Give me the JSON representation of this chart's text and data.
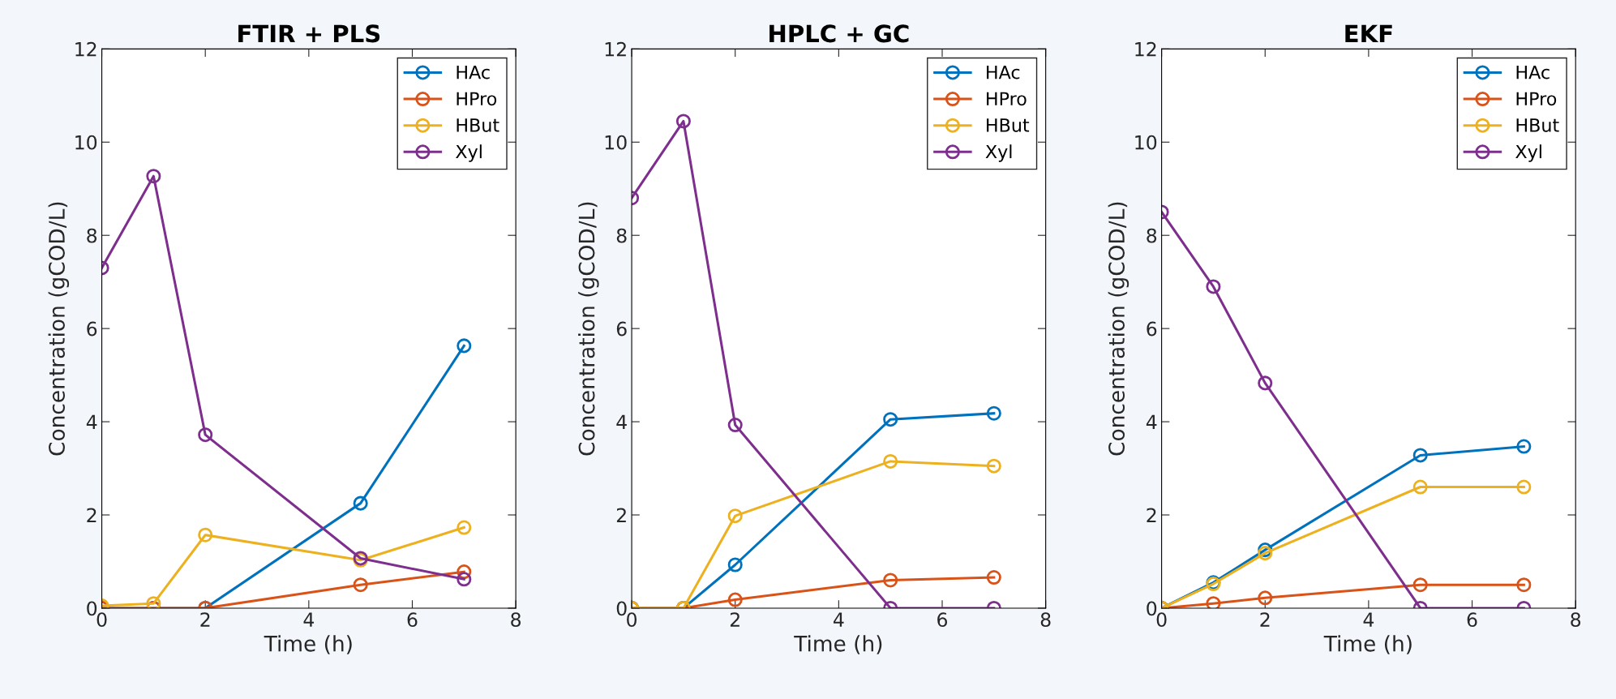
{
  "chart_data": [
    {
      "type": "line",
      "title": "FTIR + PLS",
      "xlabel": "Time (h)",
      "ylabel": "Concentration (gCOD/L)",
      "x": [
        0,
        1,
        2,
        5,
        7
      ],
      "xlim": [
        0,
        8
      ],
      "xticks": [
        0,
        2,
        4,
        6,
        8
      ],
      "ylim": [
        0,
        12
      ],
      "yticks": [
        0,
        2,
        4,
        6,
        8,
        10,
        12
      ],
      "grid": false,
      "legend": "top right",
      "marker": "circle",
      "line_style": "solid",
      "series": [
        {
          "name": "HAc",
          "color": "#0072bd",
          "values": [
            0,
            0,
            0,
            2.25,
            5.63
          ]
        },
        {
          "name": "HPro",
          "color": "#d95319",
          "values": [
            0,
            0,
            0,
            0.5,
            0.78
          ]
        },
        {
          "name": "HBut",
          "color": "#edb120",
          "values": [
            0.05,
            0.1,
            1.57,
            1.03,
            1.73
          ]
        },
        {
          "name": "Xyl",
          "color": "#7e2f8e",
          "values": [
            7.3,
            9.27,
            3.72,
            1.07,
            0.62
          ]
        }
      ]
    },
    {
      "type": "line",
      "title": "HPLC + GC",
      "xlabel": "Time (h)",
      "ylabel": "Concentration (gCOD/L)",
      "x": [
        0,
        1,
        2,
        5,
        7
      ],
      "xlim": [
        0,
        8
      ],
      "xticks": [
        0,
        2,
        4,
        6,
        8
      ],
      "ylim": [
        0,
        12
      ],
      "yticks": [
        0,
        2,
        4,
        6,
        8,
        10,
        12
      ],
      "grid": false,
      "legend": "top right",
      "marker": "circle",
      "line_style": "solid",
      "series": [
        {
          "name": "HAc",
          "color": "#0072bd",
          "values": [
            0,
            0,
            0.93,
            4.05,
            4.18
          ]
        },
        {
          "name": "HPro",
          "color": "#d95319",
          "values": [
            0,
            0,
            0.18,
            0.6,
            0.66
          ]
        },
        {
          "name": "HBut",
          "color": "#edb120",
          "values": [
            0,
            0,
            1.98,
            3.15,
            3.05
          ]
        },
        {
          "name": "Xyl",
          "color": "#7e2f8e",
          "values": [
            8.8,
            10.45,
            3.93,
            0,
            0
          ]
        }
      ]
    },
    {
      "type": "line",
      "title": "EKF",
      "xlabel": "Time (h)",
      "ylabel": "Concentration (gCOD/L)",
      "x": [
        0,
        1,
        2,
        5,
        7
      ],
      "xlim": [
        0,
        8
      ],
      "xticks": [
        0,
        2,
        4,
        6,
        8
      ],
      "ylim": [
        0,
        12
      ],
      "yticks": [
        0,
        2,
        4,
        6,
        8,
        10,
        12
      ],
      "grid": false,
      "legend": "top right",
      "marker": "circle",
      "line_style": "solid",
      "series": [
        {
          "name": "HAc",
          "color": "#0072bd",
          "values": [
            0,
            0.55,
            1.25,
            3.28,
            3.47
          ]
        },
        {
          "name": "HPro",
          "color": "#d95319",
          "values": [
            0,
            0.1,
            0.22,
            0.5,
            0.5
          ]
        },
        {
          "name": "HBut",
          "color": "#edb120",
          "values": [
            0,
            0.52,
            1.18,
            2.6,
            2.6
          ]
        },
        {
          "name": "Xyl",
          "color": "#7e2f8e",
          "values": [
            8.5,
            6.9,
            4.83,
            0,
            0
          ]
        }
      ]
    }
  ]
}
